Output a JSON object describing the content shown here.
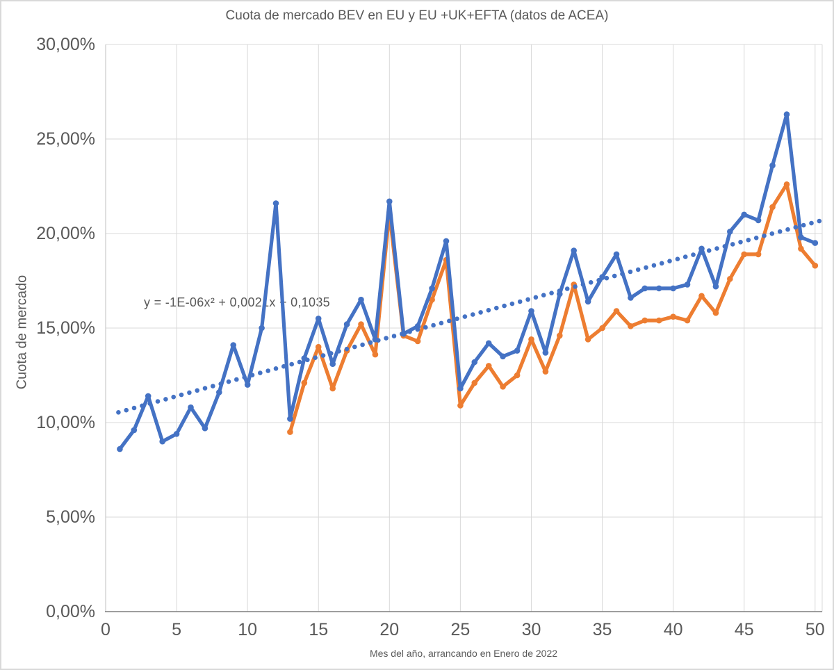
{
  "chart_data": {
    "type": "line",
    "title": "Cuota de mercado BEV en EU y EU +UK+EFTA (datos de ACEA)",
    "xlabel": "Mes del año, arrancando en Enero de 2022",
    "ylabel": "Cuota de mercado",
    "xlim": [
      0,
      50.5
    ],
    "ylim": [
      0,
      30
    ],
    "grid": true,
    "legend": "none",
    "axis_units": "percent",
    "x_ticks": [
      0,
      5,
      10,
      15,
      20,
      25,
      30,
      35,
      40,
      45,
      50
    ],
    "y_ticks": [
      {
        "value": 0,
        "label": "0,00%"
      },
      {
        "value": 5,
        "label": "5,00%"
      },
      {
        "value": 10,
        "label": "10,00%"
      },
      {
        "value": 15,
        "label": "15,00%"
      },
      {
        "value": 20,
        "label": "20,00%"
      },
      {
        "value": 25,
        "label": "25,00%"
      },
      {
        "value": 30,
        "label": "30,00%"
      }
    ],
    "x": [
      1,
      2,
      3,
      4,
      5,
      6,
      7,
      8,
      9,
      10,
      11,
      12,
      13,
      14,
      15,
      16,
      17,
      18,
      19,
      20,
      21,
      22,
      23,
      24,
      25,
      26,
      27,
      28,
      29,
      30,
      31,
      32,
      33,
      34,
      35,
      36,
      37,
      38,
      39,
      40,
      41,
      42,
      43,
      44,
      45,
      46,
      47,
      48,
      49,
      50
    ],
    "series": [
      {
        "name": "EU +UK+EFTA",
        "color": "#4472C4",
        "values": [
          8.6,
          9.6,
          11.4,
          9.0,
          9.4,
          10.8,
          9.7,
          11.6,
          14.1,
          12.0,
          15.0,
          21.6,
          10.2,
          13.4,
          15.5,
          13.1,
          15.2,
          16.5,
          14.4,
          21.7,
          14.7,
          15.1,
          17.1,
          19.6,
          11.8,
          13.2,
          14.2,
          13.5,
          13.8,
          15.9,
          13.7,
          16.8,
          19.1,
          16.4,
          17.7,
          18.9,
          16.6,
          17.1,
          17.1,
          17.1,
          17.3,
          19.2,
          17.2,
          20.1,
          21.0,
          20.7,
          23.6,
          26.3,
          19.8,
          19.5
        ]
      },
      {
        "name": "EU",
        "color": "#ED7D31",
        "values": [
          null,
          null,
          null,
          null,
          null,
          null,
          null,
          null,
          null,
          null,
          null,
          null,
          9.5,
          12.1,
          14.0,
          11.8,
          13.8,
          15.2,
          13.6,
          21.1,
          14.6,
          14.3,
          16.5,
          18.6,
          10.9,
          12.1,
          13.0,
          11.9,
          12.5,
          14.4,
          12.7,
          14.6,
          17.3,
          14.4,
          15.0,
          15.9,
          15.1,
          15.4,
          15.4,
          15.6,
          15.4,
          16.7,
          15.8,
          17.6,
          18.9,
          18.9,
          21.4,
          22.6,
          19.2,
          18.3
        ]
      }
    ],
    "trendline": {
      "equation": "y = -1E-06x² + 0,0021x + 0,1035",
      "coefficients": {
        "a": -1e-06,
        "b": 0.0021,
        "c": 0.1035
      },
      "style": "dotted",
      "color": "#4472C4",
      "x_range": [
        0.9,
        50.7
      ]
    },
    "colors": {
      "gridline": "#D9D9D9",
      "left_axis": "#BFBFBF",
      "bottom_axis": "#7F7F7F",
      "text": "#595959"
    }
  }
}
